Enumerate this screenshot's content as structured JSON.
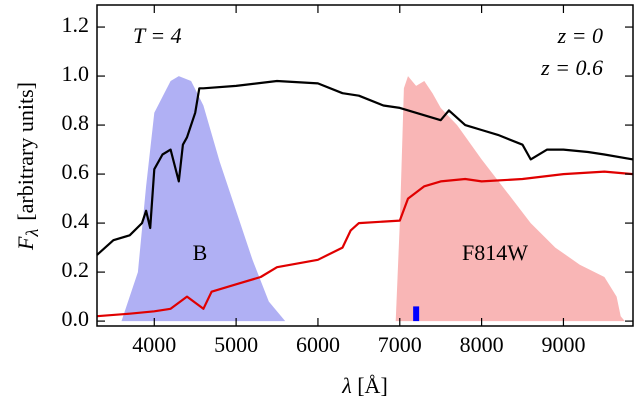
{
  "chart_data": {
    "type": "line",
    "xlabel": {
      "symbol": "λ",
      "units": "[Å]"
    },
    "ylabel": {
      "symbol": "F",
      "subscript": "λ",
      "units": "[arbitrary units]"
    },
    "annotation": "T = 4",
    "xlim": [
      3300,
      9850
    ],
    "ylim": [
      -0.02,
      1.29
    ],
    "xticks": [
      4000,
      5000,
      6000,
      7000,
      8000,
      9000
    ],
    "yticks": [
      {
        "value": 0,
        "label": "0.0"
      },
      0.2,
      0.4,
      0.6,
      0.8,
      {
        "value": 1,
        "label": "1.0"
      },
      1.2
    ],
    "series": [
      {
        "name": "B",
        "kind": "area",
        "color": "#b0b0f4",
        "x": [
          3600,
          3800,
          3900,
          4000,
          4200,
          4300,
          4450,
          4600,
          4800,
          5000,
          5200,
          5400,
          5600
        ],
        "values": [
          0,
          0.2,
          0.55,
          0.85,
          0.98,
          1.0,
          0.98,
          0.88,
          0.65,
          0.45,
          0.25,
          0.08,
          0
        ]
      },
      {
        "name": "F814W",
        "kind": "area",
        "color": "#f9b6b6",
        "x": [
          6950,
          7000,
          7050,
          7100,
          7200,
          7300,
          7400,
          7500,
          7700,
          8000,
          8300,
          8600,
          8900,
          9200,
          9500,
          9650,
          9700,
          9750
        ],
        "values": [
          0,
          0.4,
          0.95,
          1.0,
          0.96,
          0.98,
          0.93,
          0.87,
          0.8,
          0.66,
          0.53,
          0.4,
          0.3,
          0.23,
          0.18,
          0.1,
          0.02,
          0
        ]
      },
      {
        "name": "z = 0",
        "kind": "line",
        "color": "#000000",
        "x": [
          3300,
          3500,
          3700,
          3850,
          3900,
          3950,
          4000,
          4100,
          4200,
          4300,
          4350,
          4400,
          4500,
          4550,
          4600,
          5000,
          5500,
          6000,
          6300,
          6500,
          6800,
          7000,
          7200,
          7500,
          7600,
          7800,
          8000,
          8200,
          8500,
          8600,
          8800,
          9000,
          9300,
          9500,
          9850
        ],
        "values": [
          0.27,
          0.33,
          0.35,
          0.4,
          0.45,
          0.38,
          0.62,
          0.68,
          0.7,
          0.57,
          0.72,
          0.75,
          0.85,
          0.95,
          0.95,
          0.96,
          0.98,
          0.97,
          0.93,
          0.92,
          0.88,
          0.87,
          0.85,
          0.82,
          0.86,
          0.8,
          0.78,
          0.76,
          0.72,
          0.66,
          0.7,
          0.7,
          0.69,
          0.68,
          0.66
        ]
      },
      {
        "name": "z = 0.6",
        "kind": "line",
        "color": "#e00000",
        "x": [
          3300,
          3700,
          4000,
          4200,
          4400,
          4600,
          4700,
          5000,
          5300,
          5500,
          6000,
          6300,
          6400,
          6500,
          7000,
          7100,
          7300,
          7500,
          7800,
          8000,
          8500,
          9000,
          9500,
          9850
        ],
        "values": [
          0.02,
          0.03,
          0.04,
          0.05,
          0.1,
          0.05,
          0.12,
          0.15,
          0.18,
          0.22,
          0.25,
          0.3,
          0.37,
          0.4,
          0.41,
          0.5,
          0.55,
          0.57,
          0.58,
          0.57,
          0.58,
          0.6,
          0.61,
          0.6
        ]
      }
    ],
    "marker": {
      "x": 7200,
      "height": 0.06,
      "color": "#0000ff"
    }
  }
}
